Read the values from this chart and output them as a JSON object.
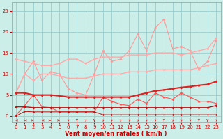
{
  "x": [
    0,
    1,
    2,
    3,
    4,
    5,
    6,
    7,
    8,
    9,
    10,
    11,
    12,
    13,
    14,
    15,
    16,
    17,
    18,
    19,
    20,
    21,
    22,
    23
  ],
  "line_pale_upper": [
    13.5,
    13.0,
    12.5,
    12.0,
    12.0,
    12.5,
    13.5,
    13.5,
    12.5,
    13.5,
    14.0,
    14.0,
    14.0,
    14.5,
    14.5,
    14.5,
    15.0,
    15.0,
    15.0,
    14.5,
    15.0,
    15.5,
    16.0,
    18.5
  ],
  "line_pale_lower": [
    5.5,
    10.0,
    8.5,
    10.0,
    10.0,
    9.5,
    9.0,
    9.0,
    9.0,
    9.5,
    10.0,
    10.0,
    10.0,
    10.5,
    10.5,
    10.5,
    11.0,
    11.0,
    11.0,
    11.0,
    11.0,
    11.5,
    12.0,
    12.5
  ],
  "line_pink_jagged": [
    5.5,
    10.0,
    13.0,
    8.5,
    10.5,
    10.0,
    6.5,
    5.5,
    5.0,
    10.0,
    15.5,
    13.0,
    13.5,
    15.5,
    19.5,
    15.5,
    21.0,
    23.0,
    16.0,
    16.5,
    15.5,
    11.0,
    13.0,
    18.0
  ],
  "line_red_bold": [
    5.5,
    5.5,
    5.0,
    5.0,
    5.0,
    4.8,
    4.5,
    4.5,
    4.5,
    4.5,
    4.5,
    4.5,
    4.5,
    4.5,
    5.0,
    5.5,
    6.0,
    6.2,
    6.5,
    6.8,
    7.0,
    7.3,
    7.5,
    8.2
  ],
  "line_red_mid": [
    0.2,
    2.5,
    5.0,
    2.2,
    2.0,
    1.0,
    1.0,
    1.0,
    1.0,
    1.0,
    4.5,
    3.5,
    2.8,
    2.5,
    4.0,
    3.0,
    5.5,
    4.5,
    4.0,
    5.5,
    4.5,
    3.5,
    3.5,
    3.0
  ],
  "line_dark_flat": [
    2.2,
    2.2,
    2.0,
    2.0,
    2.0,
    2.0,
    2.0,
    2.0,
    2.0,
    2.0,
    2.0,
    2.0,
    2.0,
    2.0,
    2.0,
    2.0,
    2.0,
    2.0,
    2.0,
    2.0,
    2.0,
    2.0,
    2.0,
    2.5
  ],
  "line_dark_low": [
    0.0,
    1.1,
    1.0,
    1.0,
    1.0,
    1.0,
    1.0,
    1.0,
    1.0,
    1.0,
    0.3,
    0.3,
    0.3,
    0.3,
    0.3,
    0.3,
    0.3,
    0.3,
    0.3,
    0.3,
    0.3,
    0.3,
    0.3,
    0.3
  ],
  "arrow_angles_deg": [
    180,
    180,
    0,
    180,
    0,
    0,
    45,
    270,
    45,
    270,
    45,
    45,
    45,
    45,
    45,
    45,
    45,
    270,
    45,
    45,
    45,
    270,
    270,
    45
  ],
  "bg_color": "#cceee8",
  "grid_color": "#99cccc",
  "color_pale": "#ffaaaa",
  "color_pink": "#ff9999",
  "color_red_bold": "#dd2222",
  "color_red_mid": "#ff5555",
  "color_dark": "#bb1111",
  "xlabel": "Vent moyen/en rafales ( km/h )",
  "ylim": [
    -1.5,
    27
  ],
  "xlim": [
    -0.5,
    23.5
  ],
  "yticks": [
    0,
    5,
    10,
    15,
    20,
    25
  ],
  "xticks": [
    0,
    1,
    2,
    3,
    4,
    5,
    6,
    7,
    8,
    9,
    10,
    11,
    12,
    13,
    14,
    15,
    16,
    17,
    18,
    19,
    20,
    21,
    22,
    23
  ]
}
